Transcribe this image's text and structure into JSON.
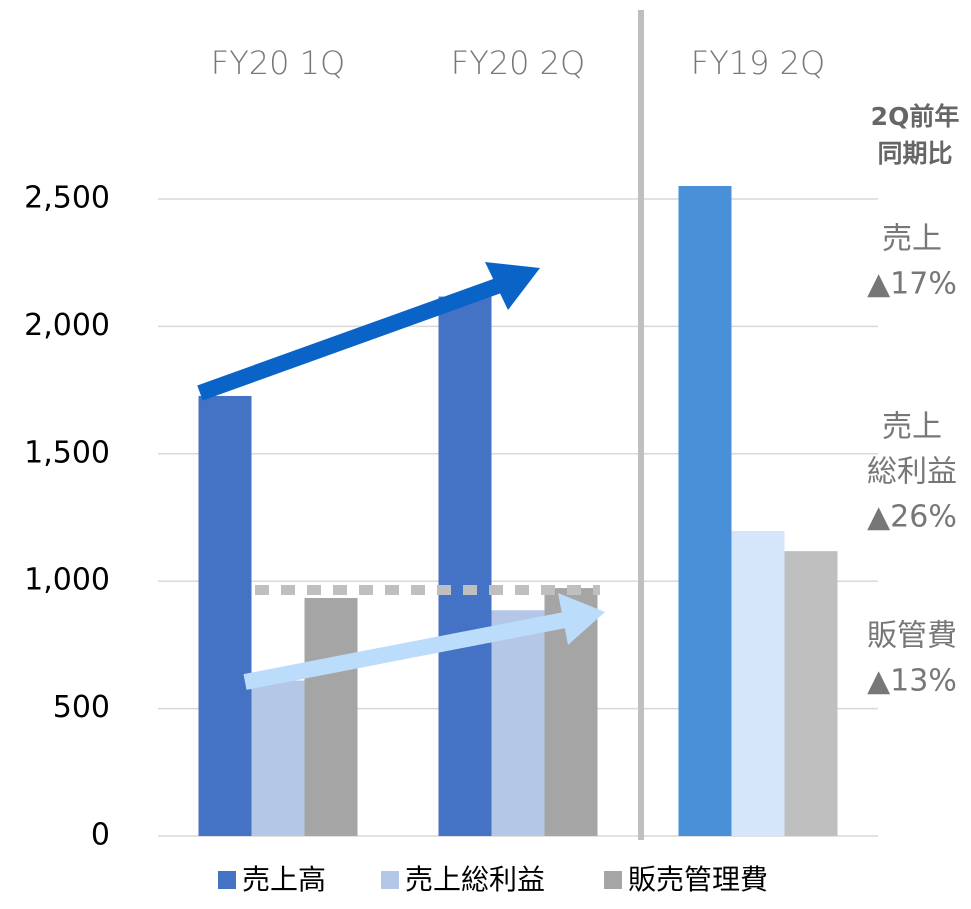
{
  "chart_data": {
    "type": "bar",
    "categories": [
      "FY20 1Q",
      "FY20 2Q",
      "FY19 2Q"
    ],
    "series": [
      {
        "name": "売上高",
        "color": "#4472c4",
        "colors": [
          "#4472c4",
          "#4472c4",
          "#4a90d9"
        ],
        "values": [
          1727,
          2117,
          2551
        ]
      },
      {
        "name": "売上総利益",
        "color": "#b4c7e7",
        "colors": [
          "#b4c7e7",
          "#b4c7e7",
          "#d6e6fa"
        ],
        "values": [
          610,
          886,
          1197
        ]
      },
      {
        "name": "販売管理費",
        "color": "#a5a5a5",
        "colors": [
          "#a5a5a5",
          "#a5a5a5",
          "#bfbfbf"
        ],
        "values": [
          934,
          973,
          1118
        ]
      }
    ],
    "ylim": [
      0,
      2500
    ],
    "yticks": [
      0,
      500,
      {
        "value": 1000,
        "label": "1,000"
      },
      {
        "value": 1500,
        "label": "1,500"
      },
      {
        "value": 2000,
        "label": "2,000"
      },
      {
        "value": 2500,
        "label": "2,500"
      }
    ],
    "grid": true,
    "annotations": [
      "2Q前年",
      "同期比",
      "売上",
      "▲17%",
      "売上",
      "総利益",
      "▲26%",
      "販管費",
      "▲13%"
    ]
  }
}
